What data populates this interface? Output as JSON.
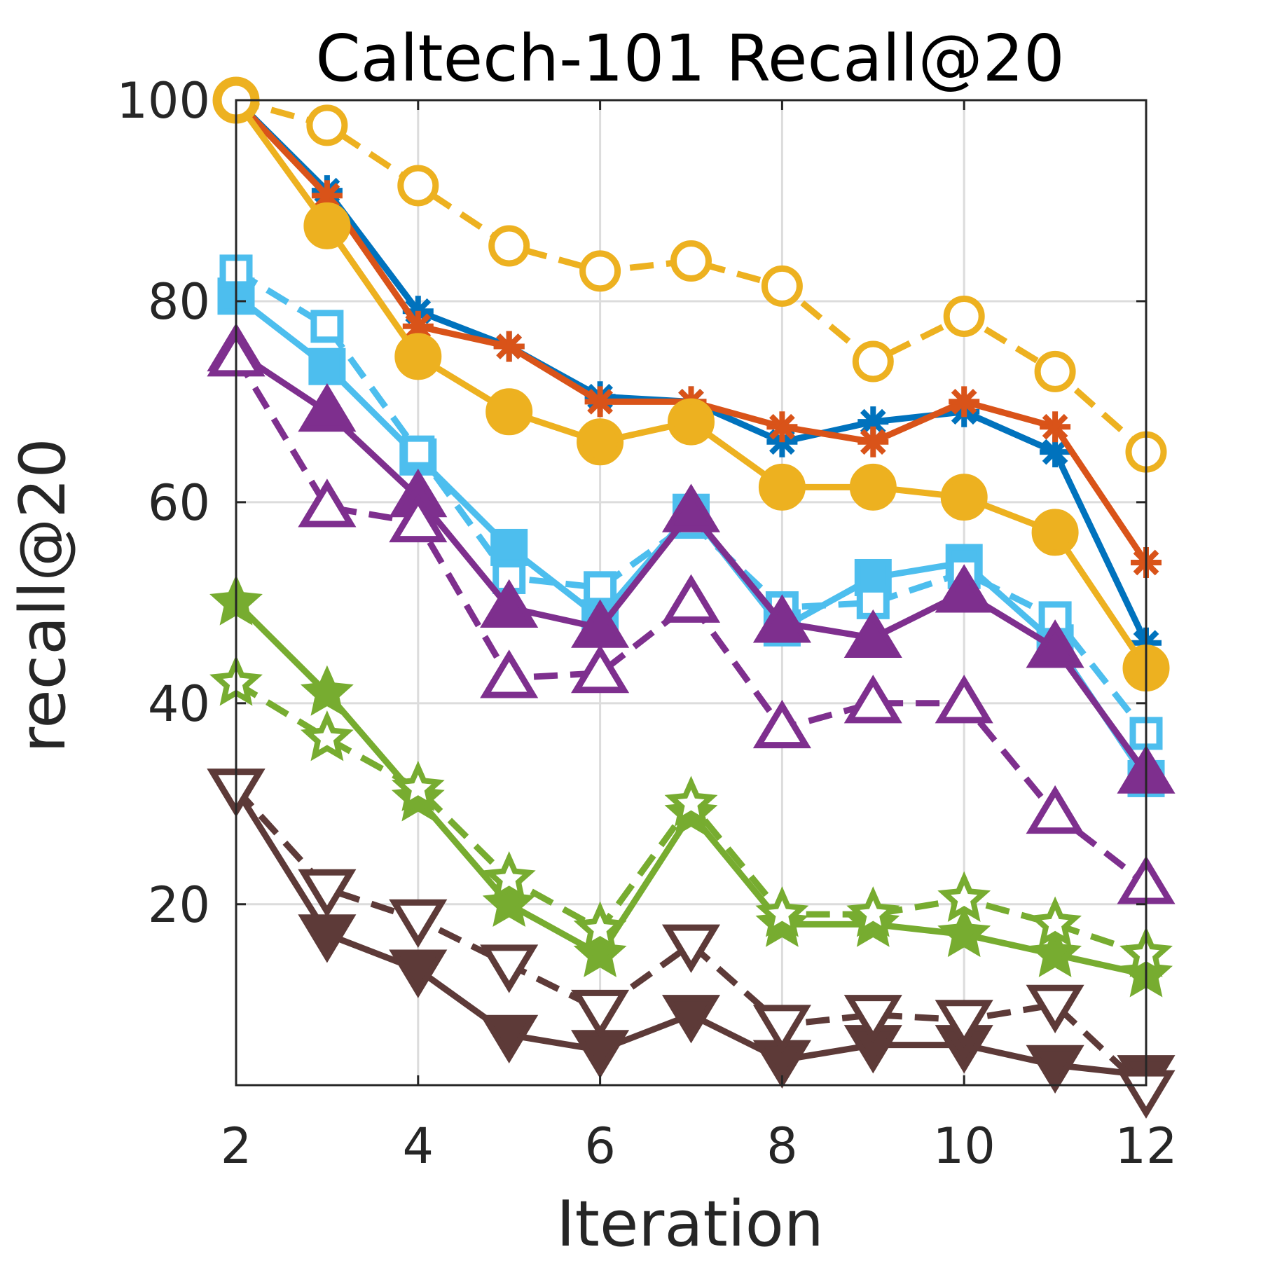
{
  "chart_data": {
    "type": "line",
    "title": "Caltech-101 Recall@20",
    "xlabel": "Iteration",
    "ylabel": "recall@20",
    "xlim": [
      2,
      12
    ],
    "ylim": [
      2,
      100
    ],
    "xticks": [
      2,
      4,
      6,
      8,
      10,
      12
    ],
    "yticks": [
      20,
      40,
      60,
      80,
      100
    ],
    "grid": true,
    "x": [
      2,
      3,
      4,
      5,
      6,
      7,
      8,
      9,
      10,
      11,
      12
    ],
    "series": [
      {
        "color": "#0072bd",
        "dash": "solid",
        "marker": "asterisk",
        "fill": false,
        "values": [
          100,
          91,
          79,
          75.5,
          70.5,
          70,
          66,
          68,
          69,
          65,
          46
        ]
      },
      {
        "color": "#d95319",
        "dash": "solid",
        "marker": "asterisk",
        "fill": false,
        "values": [
          100,
          90.5,
          77.5,
          75.5,
          70,
          70,
          67.5,
          66,
          70,
          67.5,
          54
        ]
      },
      {
        "color": "#edb120",
        "dash": "solid",
        "marker": "circle",
        "fill": true,
        "values": [
          100,
          87.5,
          74.5,
          69,
          66,
          68,
          61.5,
          61.5,
          60.5,
          57,
          43.5
        ]
      },
      {
        "color": "#edb120",
        "dash": "dashed",
        "marker": "circle",
        "fill": false,
        "values": [
          100,
          97.5,
          91.5,
          85.5,
          83,
          84,
          81.5,
          74,
          78.5,
          73,
          65
        ]
      },
      {
        "color": "#4dbeee",
        "dash": "solid",
        "marker": "square",
        "fill": true,
        "values": [
          80.5,
          73.5,
          64.5,
          55.5,
          48.5,
          59,
          47.5,
          52.5,
          54,
          46,
          32.5
        ]
      },
      {
        "color": "#4dbeee",
        "dash": "dashed",
        "marker": "square",
        "fill": false,
        "values": [
          83,
          77.5,
          65,
          52.5,
          51.5,
          58,
          49.5,
          50,
          53,
          48.5,
          37
        ]
      },
      {
        "color": "#7e2f8e",
        "dash": "solid",
        "marker": "triangle-up",
        "fill": true,
        "values": [
          75,
          69,
          60.5,
          49.5,
          47.5,
          59,
          48,
          46.5,
          51,
          45.5,
          33
        ]
      },
      {
        "color": "#7e2f8e",
        "dash": "dashed",
        "marker": "triangle-up",
        "fill": false,
        "values": [
          74.5,
          59.5,
          58,
          42.5,
          43,
          50,
          37.5,
          40,
          40,
          29,
          22
        ]
      },
      {
        "color": "#77ac30",
        "dash": "solid",
        "marker": "star",
        "fill": true,
        "values": [
          50,
          41,
          30.5,
          20,
          15,
          29,
          18,
          18,
          17,
          15,
          13
        ]
      },
      {
        "color": "#77ac30",
        "dash": "dashed",
        "marker": "star",
        "fill": false,
        "values": [
          42,
          36.5,
          31.5,
          22.5,
          17.5,
          30,
          19,
          19,
          20.5,
          18,
          15
        ]
      },
      {
        "color": "#5d3a38",
        "dash": "solid",
        "marker": "triangle-down",
        "fill": true,
        "values": [
          31.5,
          17,
          13.5,
          7,
          5.5,
          9,
          4.5,
          6,
          6,
          4,
          3
        ]
      },
      {
        "color": "#5d3a38",
        "dash": "dashed",
        "marker": "triangle-down",
        "fill": false,
        "values": [
          31.5,
          21.5,
          18.5,
          14,
          9.5,
          16,
          8,
          9,
          8.5,
          10,
          1.5
        ]
      }
    ]
  }
}
